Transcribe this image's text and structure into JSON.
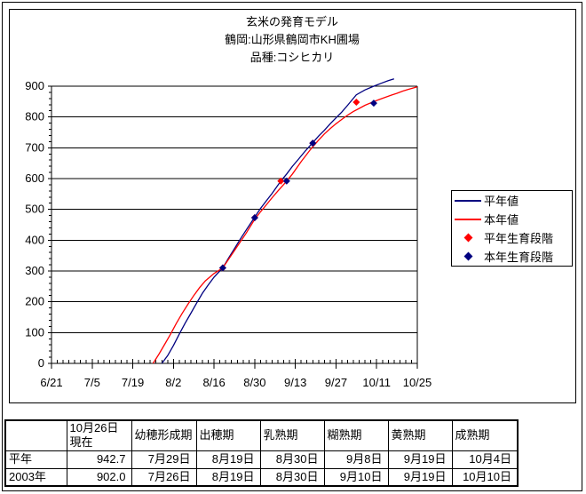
{
  "page": {
    "background": "#FFFFFF",
    "border_color": "#000000"
  },
  "chart_data": {
    "type": "line",
    "title_lines": [
      "玄米の発育モデル",
      "鶴岡:山形県鶴岡市KH圃場",
      "品種:コシヒカリ"
    ],
    "x_axis": {
      "first_day": "6/21",
      "last_day": "10/25",
      "tick_labels": [
        "6/21",
        "7/5",
        "7/19",
        "8/2",
        "8/16",
        "8/30",
        "9/13",
        "9/27",
        "10/11",
        "10/25"
      ],
      "major_every_days": 14,
      "minor_every_days": 2,
      "total_days": 126
    },
    "y_axis": {
      "min": 0,
      "max": 900,
      "major": 100,
      "minor": 20,
      "tick_labels": [
        "0",
        "100",
        "200",
        "300",
        "400",
        "500",
        "600",
        "700",
        "800",
        "900"
      ]
    },
    "grid": "horizontal-major",
    "legend_position": "right",
    "series": [
      {
        "name": "平年値",
        "color": "#000080",
        "kind": "line",
        "points": [
          [
            "7/29",
            0
          ],
          [
            "7/31",
            25
          ],
          [
            "8/2",
            58
          ],
          [
            "8/4",
            95
          ],
          [
            "8/6",
            130
          ],
          [
            "8/8",
            163
          ],
          [
            "8/10",
            196
          ],
          [
            "8/12",
            228
          ],
          [
            "8/14",
            255
          ],
          [
            "8/16",
            280
          ],
          [
            "8/19",
            310
          ],
          [
            "8/21",
            342
          ],
          [
            "8/23",
            372
          ],
          [
            "8/25",
            403
          ],
          [
            "8/27",
            432
          ],
          [
            "8/30",
            475
          ],
          [
            "9/1",
            503
          ],
          [
            "9/3",
            528
          ],
          [
            "9/5",
            552
          ],
          [
            "9/8",
            592
          ],
          [
            "9/10",
            615
          ],
          [
            "9/12",
            640
          ],
          [
            "9/14",
            662
          ],
          [
            "9/16",
            685
          ],
          [
            "9/19",
            717
          ],
          [
            "9/21",
            738
          ],
          [
            "9/23",
            757
          ],
          [
            "9/25",
            778
          ],
          [
            "9/27",
            797
          ],
          [
            "9/29",
            816
          ],
          [
            "10/1",
            838
          ],
          [
            "10/4",
            872
          ],
          [
            "10/7",
            888
          ],
          [
            "10/10",
            900
          ],
          [
            "10/13",
            911
          ],
          [
            "10/15",
            918
          ],
          [
            "10/17",
            924
          ]
        ]
      },
      {
        "name": "本年値",
        "color": "#FF0000",
        "kind": "line",
        "points": [
          [
            "7/26",
            0
          ],
          [
            "7/28",
            30
          ],
          [
            "7/30",
            62
          ],
          [
            "8/1",
            95
          ],
          [
            "8/3",
            130
          ],
          [
            "8/5",
            162
          ],
          [
            "8/7",
            192
          ],
          [
            "8/9",
            220
          ],
          [
            "8/11",
            246
          ],
          [
            "8/13",
            268
          ],
          [
            "8/16",
            292
          ],
          [
            "8/19",
            310
          ],
          [
            "8/21",
            338
          ],
          [
            "8/23",
            366
          ],
          [
            "8/25",
            394
          ],
          [
            "8/27",
            422
          ],
          [
            "8/30",
            468
          ],
          [
            "9/1",
            492
          ],
          [
            "9/3",
            515
          ],
          [
            "9/5",
            538
          ],
          [
            "9/7",
            560
          ],
          [
            "9/10",
            592
          ],
          [
            "9/12",
            615
          ],
          [
            "9/15",
            655
          ],
          [
            "9/18",
            692
          ],
          [
            "9/19",
            703
          ],
          [
            "9/21",
            725
          ],
          [
            "9/23",
            745
          ],
          [
            "9/25",
            762
          ],
          [
            "9/27",
            778
          ],
          [
            "9/29",
            792
          ],
          [
            "10/1",
            806
          ],
          [
            "10/3",
            818
          ],
          [
            "10/5",
            828
          ],
          [
            "10/7",
            838
          ],
          [
            "10/10",
            850
          ],
          [
            "10/12",
            857
          ],
          [
            "10/14",
            864
          ],
          [
            "10/16",
            871
          ],
          [
            "10/18",
            877
          ],
          [
            "10/20",
            884
          ],
          [
            "10/22",
            890
          ],
          [
            "10/25",
            898
          ]
        ]
      },
      {
        "name": "平年生育段階",
        "color": "#FF0000",
        "kind": "diamond",
        "points": [
          [
            "8/19",
            310
          ],
          [
            "8/30",
            473
          ],
          [
            "9/8",
            592
          ],
          [
            "9/19",
            715
          ],
          [
            "10/4",
            848
          ]
        ]
      },
      {
        "name": "本年生育段階",
        "color": "#000080",
        "kind": "diamond",
        "points": [
          [
            "8/19",
            310
          ],
          [
            "8/30",
            473
          ],
          [
            "9/10",
            592
          ],
          [
            "9/19",
            715
          ],
          [
            "10/10",
            845
          ]
        ]
      }
    ]
  },
  "table": {
    "headers": [
      "",
      "10月26日現在",
      "幼穂形成期",
      "出穂期",
      "乳熟期",
      "糊熟期",
      "黄熟期",
      "成熟期"
    ],
    "rows": [
      [
        "平年",
        "942.7",
        "7月29日",
        "8月19日",
        "8月30日",
        "9月8日",
        "9月19日",
        "10月4日"
      ],
      [
        "2003年",
        "902.0",
        "7月26日",
        "8月19日",
        "8月30日",
        "9月10日",
        "9月19日",
        "10月10日"
      ]
    ]
  }
}
